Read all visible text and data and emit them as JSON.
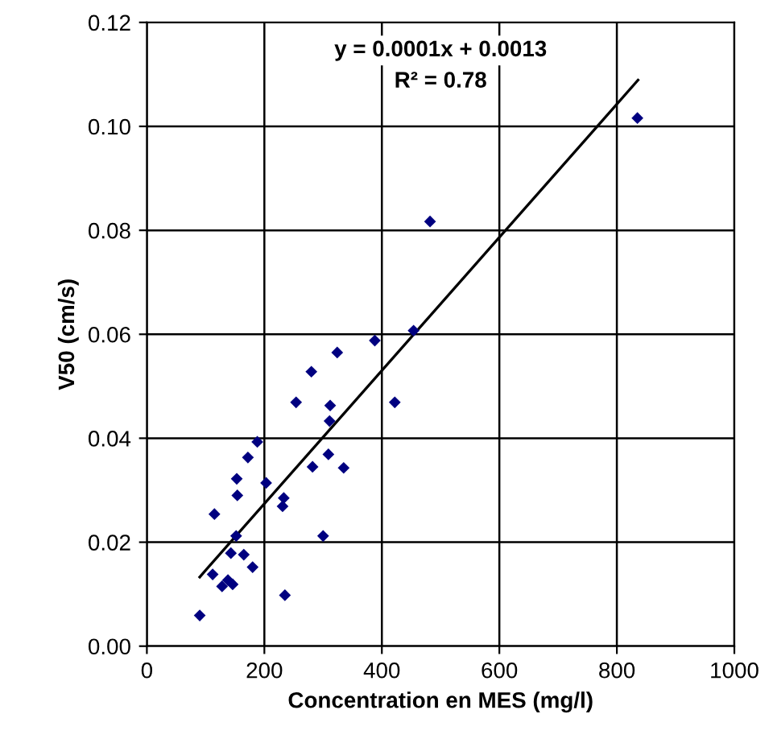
{
  "chart_data": {
    "type": "scatter",
    "xlabel": "Concentration en MES (mg/l)",
    "ylabel": "V50 (cm/s)",
    "annotations": [
      "y = 0.0001x + 0.0013",
      "R² = 0.78"
    ],
    "xlim": [
      0,
      1000
    ],
    "xticks": [
      0,
      200,
      400,
      600,
      800,
      1000
    ],
    "ylim": [
      0,
      0.12
    ],
    "yticks": [
      {
        "value": 0,
        "label": "0.00"
      },
      {
        "value": 0.02,
        "label": "0.02"
      },
      {
        "value": 0.04,
        "label": "0.04"
      },
      {
        "value": 0.06,
        "label": "0.06"
      },
      {
        "value": 0.08,
        "label": "0.08"
      },
      {
        "value": 0.1,
        "label": "0.10"
      },
      {
        "value": 0.12,
        "label": "0.12"
      }
    ],
    "grid": true,
    "legend": false,
    "series": [
      {
        "color": "#000080",
        "marker": "diamond",
        "x": [
          90,
          112,
          128,
          138,
          146,
          143,
          165,
          180,
          152,
          115,
          154,
          153,
          172,
          188,
          203,
          235,
          231,
          233,
          254,
          282,
          280,
          300,
          309,
          311,
          312,
          324,
          335,
          388,
          422,
          454,
          482,
          835
        ],
        "values": [
          0.0059,
          0.0138,
          0.0115,
          0.0127,
          0.0119,
          0.0179,
          0.0176,
          0.0152,
          0.0212,
          0.0254,
          0.029,
          0.0322,
          0.0363,
          0.0393,
          0.0314,
          0.0098,
          0.0269,
          0.0285,
          0.0469,
          0.0345,
          0.0528,
          0.0212,
          0.0369,
          0.0433,
          0.0463,
          0.0565,
          0.0343,
          0.0588,
          0.0469,
          0.0607,
          0.0817,
          0.1016
        ]
      },
      {
        "type": "line",
        "color": "#000000",
        "marker": "none",
        "line_style": "solid",
        "x": [
          90,
          836
        ],
        "values": [
          0.0133,
          0.1089
        ]
      }
    ]
  }
}
